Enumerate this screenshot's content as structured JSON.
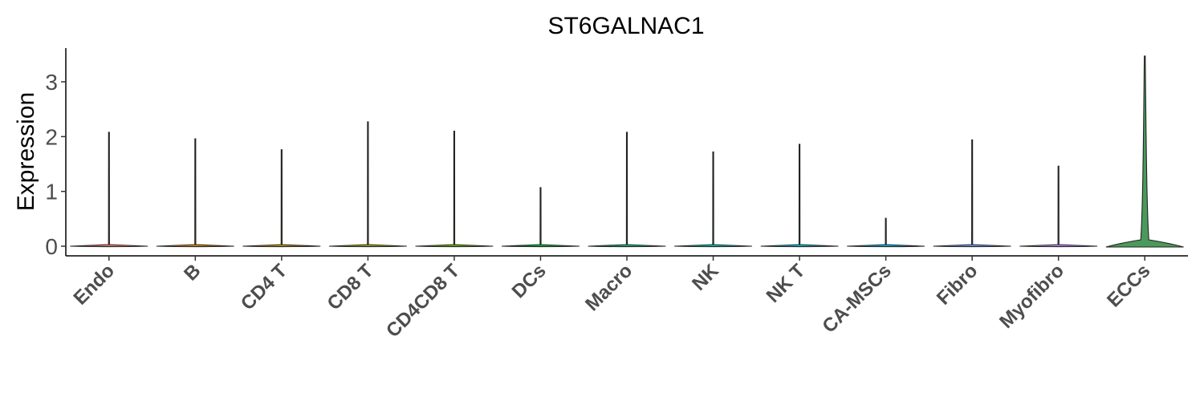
{
  "chart_data": {
    "type": "violin",
    "title": "ST6GALNAC1",
    "xlabel": "",
    "ylabel": "Expression",
    "ylim": [
      -0.15,
      3.6
    ],
    "yticks": [
      0,
      1,
      2,
      3
    ],
    "grid": false,
    "legend": "none",
    "categories": [
      "Endo",
      "B",
      "CD4 T",
      "CD8 T",
      "CD4CD8 T",
      "DCs",
      "Macro",
      "NK",
      "NK T",
      "CA-MSCs",
      "Fibro",
      "Myofibro",
      "ECCs"
    ],
    "series": [
      {
        "max_values": [
          2.08,
          1.96,
          1.76,
          2.27,
          2.1,
          1.07,
          2.08,
          1.72,
          1.86,
          0.51,
          1.94,
          1.46,
          3.47
        ],
        "median_values": [
          0,
          0,
          0,
          0,
          0,
          0,
          0,
          0,
          0,
          0,
          0,
          0,
          0
        ],
        "colors": [
          "#f8766d",
          "#e58700",
          "#c99800",
          "#a3a500",
          "#6bb100",
          "#00ba38",
          "#00bf7d",
          "#00c0af",
          "#00bcd8",
          "#00b0f6",
          "#619cff",
          "#b983ff",
          "#4a9a5c"
        ]
      }
    ]
  }
}
